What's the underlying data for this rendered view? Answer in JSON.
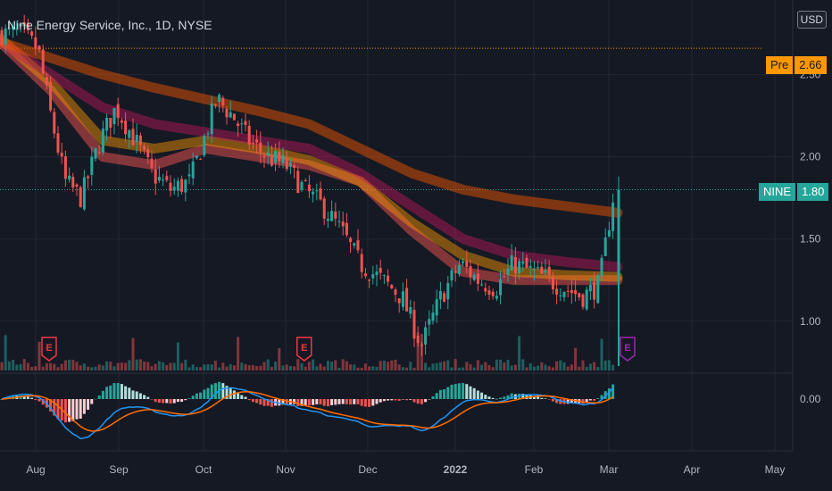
{
  "header": {
    "title": "Nine Energy Service, Inc., 1D, NYSE",
    "currency": "USD"
  },
  "price_tags": {
    "pre": {
      "label": "Pre",
      "value": "2.66"
    },
    "last": {
      "label": "NINE",
      "value": "1.80"
    }
  },
  "colors": {
    "background": "#151924",
    "up": "#26a69a",
    "down": "#ef5350",
    "macd": "#2196f3",
    "signal": "#ff6d00",
    "earnings": "#f23645",
    "earnings_next": "#9c27b0"
  },
  "chart_data": {
    "type": "candlestick",
    "price_axis": {
      "min": 0.7,
      "max": 2.9,
      "ticks": [
        "2.50",
        "2.00",
        "1.50",
        "1.00"
      ]
    },
    "time_axis": {
      "labels": [
        "Aug",
        "Sep",
        "Oct",
        "Nov",
        "Dec",
        "2022",
        "Feb",
        "Mar",
        "Apr",
        "May"
      ]
    },
    "close_path": [
      [
        "Jul 26",
        2.75
      ],
      [
        "Aug 2",
        2.65
      ],
      [
        "Aug 6",
        2.3
      ],
      [
        "Aug 12",
        1.85
      ],
      [
        "Aug 18",
        1.75
      ],
      [
        "Aug 25",
        2.1
      ],
      [
        "Aug 31",
        2.3
      ],
      [
        "Sep 7",
        2.1
      ],
      [
        "Sep 13",
        1.9
      ],
      [
        "Sep 20",
        1.8
      ],
      [
        "Sep 27",
        1.85
      ],
      [
        "Oct 1",
        2.1
      ],
      [
        "Oct 6",
        2.35
      ],
      [
        "Oct 12",
        2.25
      ],
      [
        "Oct 18",
        2.1
      ],
      [
        "Oct 25",
        2.0
      ],
      [
        "Nov 1",
        1.95
      ],
      [
        "Nov 8",
        1.8
      ],
      [
        "Nov 15",
        1.7
      ],
      [
        "Nov 22",
        1.55
      ],
      [
        "Nov 29",
        1.35
      ],
      [
        "Dec 6",
        1.25
      ],
      [
        "Dec 13",
        1.15
      ],
      [
        "Dec 20",
        0.85
      ],
      [
        "Dec 27",
        1.15
      ],
      [
        "Jan 3",
        1.35
      ],
      [
        "Jan 10",
        1.25
      ],
      [
        "Jan 17",
        1.2
      ],
      [
        "Jan 24",
        1.35
      ],
      [
        "Jan 31",
        1.3
      ],
      [
        "Feb 7",
        1.25
      ],
      [
        "Feb 14",
        1.2
      ],
      [
        "Feb 21",
        1.15
      ],
      [
        "Feb 28",
        1.22
      ],
      [
        "Mar 3",
        1.8
      ]
    ],
    "moving_averages": [
      {
        "color": "#ef5350",
        "opacity": 0.5,
        "values": [
          2.7,
          2.4,
          2.0,
          1.95,
          2.05,
          2.0,
          1.95,
          1.85,
          1.55,
          1.3,
          1.25,
          1.25,
          1.25
        ]
      },
      {
        "color": "#ff9800",
        "opacity": 0.45,
        "values": [
          2.72,
          2.45,
          2.1,
          2.05,
          2.1,
          2.05,
          1.98,
          1.85,
          1.6,
          1.4,
          1.3,
          1.28,
          1.27
        ]
      },
      {
        "color": "#c2185b",
        "opacity": 0.45,
        "values": [
          2.7,
          2.5,
          2.3,
          2.2,
          2.15,
          2.1,
          2.05,
          1.9,
          1.7,
          1.5,
          1.4,
          1.36,
          1.33
        ]
      },
      {
        "color": "#e65100",
        "opacity": 0.5,
        "values": [
          2.7,
          2.6,
          2.5,
          2.42,
          2.35,
          2.28,
          2.2,
          2.05,
          1.9,
          1.8,
          1.74,
          1.7,
          1.66
        ]
      }
    ],
    "earnings_markers": [
      "Aug 6",
      "Nov 8",
      "Mar 6"
    ],
    "macd_axis": {
      "ticks": [
        "0.00"
      ]
    }
  }
}
